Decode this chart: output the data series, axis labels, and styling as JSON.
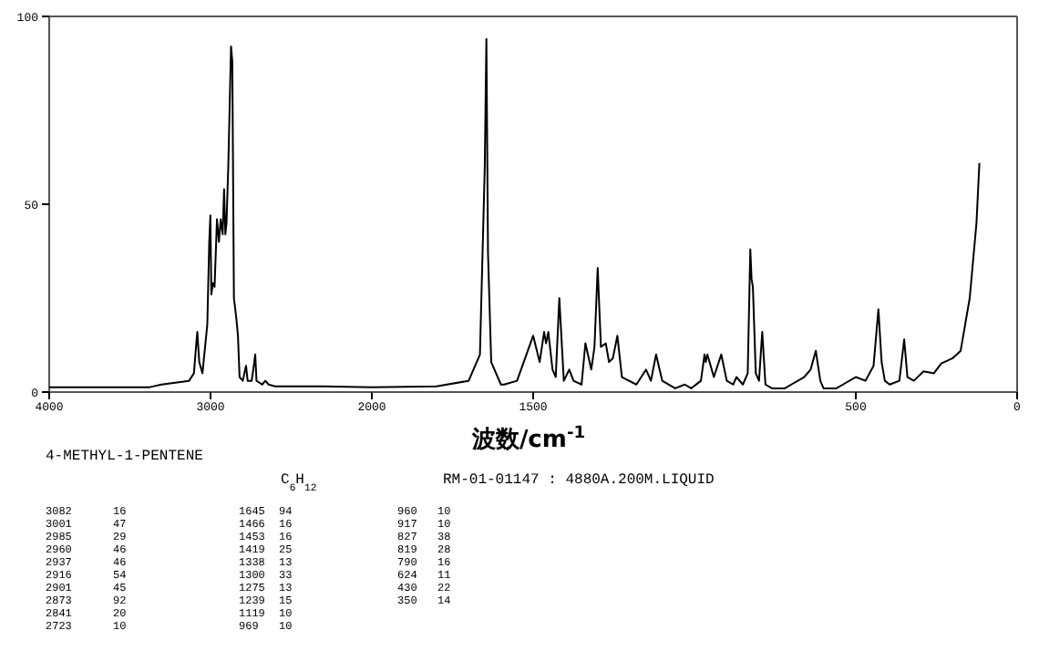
{
  "chart_data": [
    {
      "type": "line",
      "title": "4-METHYL-1-PENTENE",
      "subtitle": "C$_{6}$H$_{12}$",
      "xlim": [
        4000,
        2000
      ],
      "xticks": [
        4000,
        3000,
        2000
      ],
      "ylim": [
        0,
        100
      ],
      "yticks": [
        0,
        50,
        100
      ],
      "grid": false,
      "annotations": [
        "RM-01-01147 : 4880A.200M.LIQUID",
        "3082 16",
        "3001 47",
        "2985 29",
        "2960 46",
        "2937 46",
        "2916 54",
        "2901 45",
        "2873 92",
        "2841 20",
        "2723 10",
        "1645 94",
        "1466 16",
        "1453 16",
        "1419 25",
        "1338 13",
        "1300 33",
        "1275 13",
        "1239 15",
        "1119 10",
        "969 10",
        "960 10",
        "917 10",
        "827 38",
        "819 28",
        "790 16",
        "624 11",
        "430 22",
        "350 14"
      ],
      "series": [
        {
          "color": "#000000",
          "x": [
            4000,
            3377,
            3304,
            3133,
            3103,
            3090,
            3082,
            3070,
            3050,
            3020,
            3008,
            3001,
            2995,
            2985,
            2975,
            2960,
            2948,
            2937,
            2925,
            2916,
            2908,
            2901,
            2890,
            2873,
            2865,
            2855,
            2841,
            2830,
            2820,
            2800,
            2780,
            2770,
            2745,
            2735,
            2723,
            2715,
            2680,
            2660,
            2640,
            2600,
            2300,
            2000
          ],
          "values": [
            1.3,
            1.3,
            2,
            3,
            5,
            12,
            16,
            8,
            5,
            18,
            40,
            47,
            26,
            29,
            28,
            46,
            40,
            46,
            42,
            54,
            42,
            45,
            60,
            92,
            88,
            25,
            20,
            15,
            4,
            3,
            7,
            3,
            3,
            6,
            10,
            3,
            2,
            3,
            2,
            1.5,
            1.5,
            1.3
          ]
        }
      ]
    },
    {
      "type": "line",
      "xlabel": "波数/cm$^{-1}$",
      "xlim": [
        2000,
        0
      ],
      "xticks": [
        1500,
        500,
        0
      ],
      "ylim": [
        0,
        100
      ],
      "tick_labels": "x",
      "grid": false,
      "series": [
        {
          "color": "#000000",
          "x": [
            2000,
            1800,
            1700,
            1665,
            1650,
            1645,
            1640,
            1630,
            1600,
            1590,
            1550,
            1500,
            1480,
            1466,
            1460,
            1453,
            1440,
            1430,
            1419,
            1405,
            1388,
            1375,
            1350,
            1338,
            1320,
            1310,
            1300,
            1290,
            1275,
            1265,
            1253,
            1239,
            1225,
            1180,
            1150,
            1135,
            1119,
            1100,
            1060,
            1030,
            1010,
            980,
            969,
            965,
            960,
            940,
            917,
            900,
            880,
            870,
            850,
            835,
            827,
            823,
            819,
            810,
            800,
            790,
            780,
            760,
            720,
            700,
            660,
            640,
            624,
            610,
            600,
            560,
            540,
            500,
            470,
            445,
            430,
            420,
            410,
            395,
            365,
            350,
            340,
            320,
            290,
            258,
            235,
            200,
            175,
            147,
            126,
            117
          ],
          "values": [
            1.3,
            1.5,
            3,
            10,
            60,
            94,
            37,
            8,
            2,
            2,
            3,
            15,
            8,
            16,
            13,
            16,
            6,
            4,
            25,
            3,
            6,
            3,
            2,
            13,
            6,
            12,
            33,
            12,
            13,
            8,
            9,
            15,
            4,
            2,
            6,
            3,
            10,
            3,
            1,
            2,
            1,
            3,
            10,
            8,
            10,
            4,
            10,
            3,
            2,
            4,
            2,
            5,
            38,
            30,
            28,
            5,
            3,
            16,
            2,
            1,
            1,
            2,
            4,
            6,
            11,
            3,
            1,
            1,
            2,
            4,
            3,
            7,
            22,
            8,
            3,
            2,
            3,
            14,
            4,
            3,
            5.5,
            5,
            7.6,
            9,
            11,
            25,
            45,
            61
          ]
        }
      ]
    }
  ]
}
